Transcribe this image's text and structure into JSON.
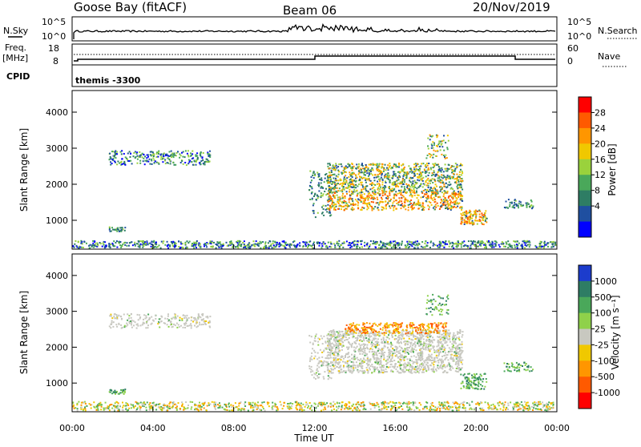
{
  "header": {
    "station": "Goose Bay (fitACF)",
    "beam": "Beam 06",
    "date": "20/Nov/2019"
  },
  "summary": {
    "nsky_label": "N.Sky",
    "nsearch_label": "N.Search",
    "log_tick_top": "10^5",
    "log_tick_bottom": "10^0",
    "freq_label_1": "Freq.",
    "freq_label_2": "[MHz]",
    "freq_ticks": [
      "18",
      "8"
    ],
    "nave_label": "Nave",
    "nave_ticks": [
      "60",
      "0"
    ],
    "cpid_label": "CPID",
    "cpid_value": "themis -3300"
  },
  "chart_data": [
    {
      "type": "heatmap",
      "name_panel": "power",
      "ylabel": "Slant Range [km]",
      "yticks": [
        1000,
        2000,
        3000,
        4000
      ],
      "ylim": [
        200,
        4600
      ],
      "xlim_hours": [
        0,
        24
      ],
      "colorbar_label": "Power [dB]",
      "colorbar_ticks": [
        "28",
        "24",
        "20",
        "16",
        "12",
        "8",
        "4"
      ],
      "colorbar_colors": [
        "#ff0000",
        "#ff5a00",
        "#ff9600",
        "#f0c800",
        "#9ad23c",
        "#4aa85a",
        "#2e7d64",
        "#1f4fa0",
        "#0000ff"
      ]
    },
    {
      "type": "heatmap",
      "name_panel": "velocity",
      "ylabel": "Slant Range [km]",
      "yticks": [
        1000,
        2000,
        3000,
        4000
      ],
      "ylim": [
        200,
        4600
      ],
      "xlim_hours": [
        0,
        24
      ],
      "colorbar_label": "Velocity [m s⁻¹]",
      "colorbar_ticks": [
        "1000",
        "500",
        "100",
        "25",
        "-25",
        "-100",
        "-500",
        "-1000"
      ],
      "colorbar_colors": [
        "#1c3ccc",
        "#2e7d64",
        "#4aa85a",
        "#8fd14a",
        "#c8c8c0",
        "#f0c800",
        "#ff9600",
        "#ff5a00",
        "#ff0000"
      ]
    }
  ],
  "xaxis": {
    "ticks": [
      "00:00",
      "04:00",
      "08:00",
      "12:00",
      "16:00",
      "20:00",
      "00:00"
    ],
    "label": "Time UT"
  }
}
